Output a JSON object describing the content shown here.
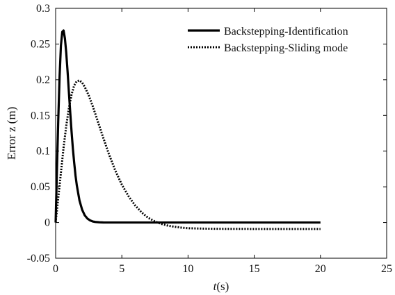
{
  "chart_data": {
    "type": "line",
    "title": "",
    "xlabel_italic": "t",
    "xlabel_rest": "(s)",
    "ylabel": "Error z (m)",
    "xlim": [
      0,
      25
    ],
    "ylim": [
      -0.05,
      0.3
    ],
    "xticks": [
      0,
      5,
      10,
      15,
      20,
      25
    ],
    "yticks": [
      -0.05,
      0,
      0.05,
      0.1,
      0.15,
      0.2,
      0.25,
      0.3
    ],
    "xtick_labels": [
      "0",
      "5",
      "10",
      "15",
      "20",
      "25"
    ],
    "ytick_labels": [
      "-0.05",
      "0",
      "0.05",
      "0.1",
      "0.15",
      "0.2",
      "0.25",
      "0.3"
    ],
    "grid": false,
    "legend_position": "top-right",
    "series": [
      {
        "name": "Backstepping-Identification",
        "style": "solid",
        "color": "#000000",
        "x": [
          0,
          0.1,
          0.2,
          0.3,
          0.4,
          0.5,
          0.6,
          0.7,
          0.8,
          0.9,
          1.0,
          1.1,
          1.2,
          1.3,
          1.4,
          1.5,
          1.6,
          1.8,
          2.0,
          2.2,
          2.4,
          2.6,
          2.8,
          3.0,
          3.3,
          3.6,
          4.0,
          4.5,
          5.0,
          6.0,
          8.0,
          10.0,
          15.0,
          20.0
        ],
        "y": [
          0,
          0.075,
          0.145,
          0.205,
          0.248,
          0.267,
          0.269,
          0.258,
          0.238,
          0.212,
          0.183,
          0.155,
          0.128,
          0.104,
          0.084,
          0.066,
          0.052,
          0.031,
          0.018,
          0.01,
          0.0055,
          0.003,
          0.0015,
          0.0008,
          0.0003,
          0.0001,
          0,
          0,
          0,
          0,
          0,
          0,
          0,
          0
        ]
      },
      {
        "name": "Backstepping-Sliding mode",
        "style": "dotted",
        "color": "#000000",
        "x": [
          0,
          0.2,
          0.4,
          0.6,
          0.8,
          1.0,
          1.2,
          1.4,
          1.6,
          1.8,
          2.0,
          2.2,
          2.5,
          2.8,
          3.0,
          3.5,
          4.0,
          4.5,
          5.0,
          5.5,
          6.0,
          6.5,
          7.0,
          7.5,
          8.0,
          8.5,
          9.0,
          9.5,
          10.0,
          11.0,
          12.0,
          13.0,
          15.0,
          17.0,
          20.0
        ],
        "y": [
          0,
          0.035,
          0.07,
          0.105,
          0.135,
          0.16,
          0.179,
          0.192,
          0.198,
          0.199,
          0.196,
          0.19,
          0.178,
          0.163,
          0.152,
          0.124,
          0.097,
          0.073,
          0.053,
          0.037,
          0.024,
          0.014,
          0.0065,
          0.0015,
          -0.002,
          -0.0045,
          -0.006,
          -0.0072,
          -0.008,
          -0.0085,
          -0.0088,
          -0.0089,
          -0.009,
          -0.009,
          -0.009
        ]
      }
    ]
  }
}
